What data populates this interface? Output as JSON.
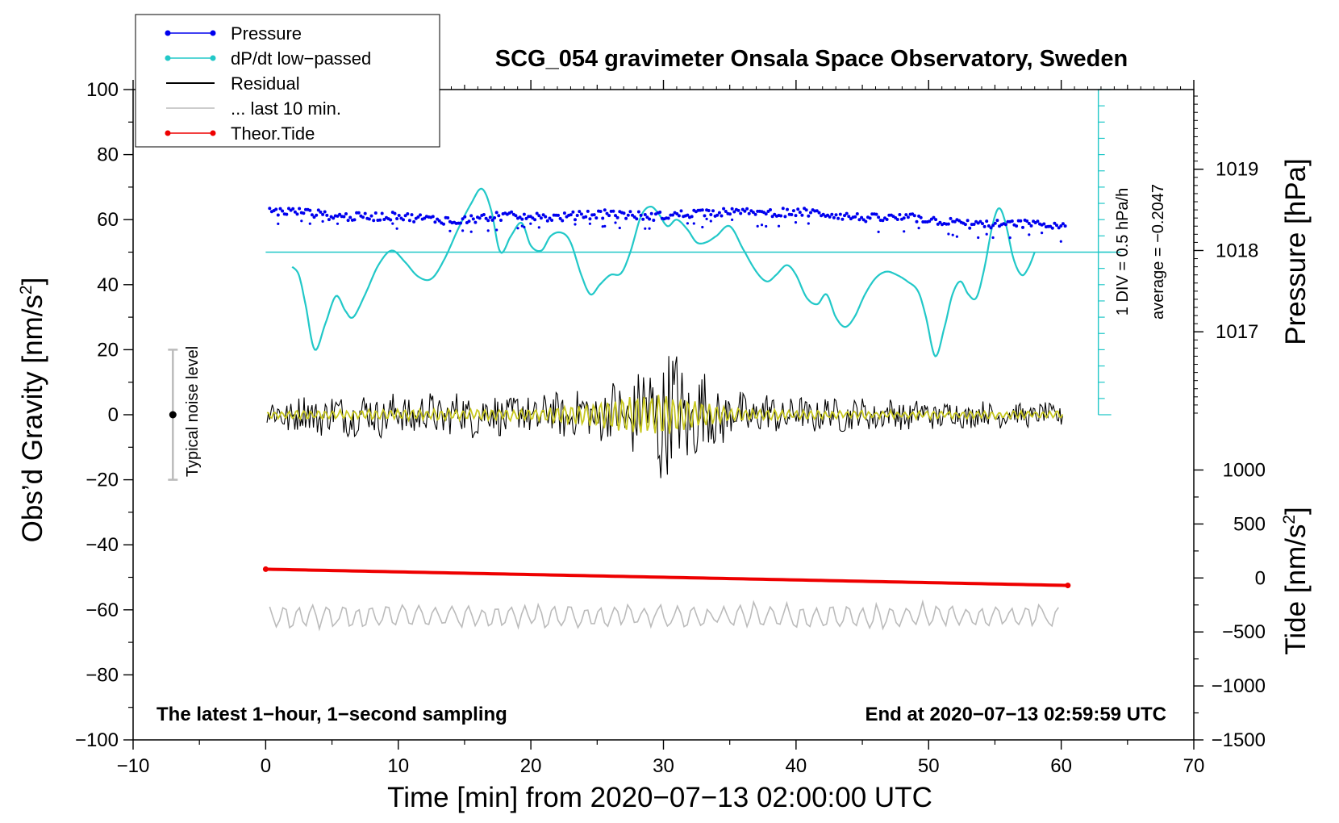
{
  "chart_data": {
    "type": "line",
    "title": "SCG_054 gravimeter Onsala Space Observatory, Sweden",
    "xlabel": "Time [min] from 2020−07−13 02:00:00 UTC",
    "ylabel": "Obs’d Gravity [nm/s",
    "ylabel_sup": "2",
    "ylabel_close": "]",
    "y2label_pressure": "Pressure [hPa]",
    "y2label_tide": "Tide [nm/s",
    "y2label_tide_sup": "2",
    "y2label_tide_close": "]",
    "xlim": [
      -10,
      70
    ],
    "ylim": [
      -100,
      100
    ],
    "x_ticks": [
      "−10",
      "0",
      "10",
      "20",
      "30",
      "40",
      "50",
      "60",
      "70"
    ],
    "x_tick_values": [
      -10,
      0,
      10,
      20,
      30,
      40,
      50,
      60,
      70
    ],
    "y_ticks": [
      "100",
      "80",
      "60",
      "40",
      "20",
      "0",
      "−20",
      "−40",
      "−60",
      "−80",
      "−100"
    ],
    "y_tick_values": [
      100,
      80,
      60,
      40,
      20,
      0,
      -20,
      -40,
      -60,
      -80,
      -100
    ],
    "pressure_ticks": [
      "1019",
      "1018",
      "1017"
    ],
    "pressure_tick_gravity_positions": [
      75.5,
      50.5,
      25.5
    ],
    "tide_ticks": [
      "1000",
      "500",
      "0",
      "−500",
      "−1000",
      "−1500"
    ],
    "tide_tick_values": [
      1000,
      500,
      0,
      -500,
      -1000,
      -1500
    ],
    "tide_axis_gravity_range": [
      -100,
      -17
    ],
    "tide_axis_tide_range": [
      -1500,
      1000
    ],
    "legend": [
      {
        "label": "Pressure",
        "color": "#0000ee",
        "marker": true
      },
      {
        "label": "dP/dt low−passed",
        "color": "#22c8c8",
        "marker": true
      },
      {
        "label": "Residual",
        "color": "#000000",
        "marker": false
      },
      {
        "label": "... last 10 min.",
        "color": "#bbbbbb",
        "marker": false
      },
      {
        "label": "Theor.Tide",
        "color": "#ee0000",
        "marker": true
      }
    ],
    "series": [
      {
        "name": "Pressure",
        "color": "#0000ee",
        "x": [
          0,
          5,
          10,
          15,
          20,
          25,
          30,
          35,
          37.5,
          40,
          45,
          50,
          55,
          60
        ],
        "values": [
          62.5,
          61.5,
          60.5,
          60.2,
          61,
          61.3,
          61.5,
          62,
          62.8,
          62,
          61,
          59.8,
          58.5,
          58
        ]
      },
      {
        "name": "dP/dt low-passed",
        "color": "#22c8c8",
        "x": [
          2,
          2.5,
          3,
          3.7,
          4.5,
          5.3,
          6,
          6.6,
          7.5,
          8.5,
          9.5,
          10.5,
          11.5,
          12.5,
          13.5,
          14.5,
          15.5,
          16.3,
          17,
          17.7,
          18.5,
          19.3,
          20,
          20.8,
          21.5,
          22.3,
          23,
          23.8,
          24.5,
          25.2,
          26,
          26.8,
          27.5,
          28.3,
          29,
          29.6,
          30.3,
          31,
          31.8,
          32.5,
          33.2,
          34,
          35,
          36,
          37,
          37.8,
          38.5,
          39.3,
          40,
          40.8,
          41.6,
          42.3,
          43,
          43.7,
          44.4,
          45.2,
          46,
          46.8,
          47.6,
          48.4,
          49.2,
          49.8,
          50.5,
          51.2,
          51.8,
          52.4,
          53,
          53.6,
          54.2,
          54.8,
          55.3,
          55.8,
          56.4,
          57,
          57.5,
          58
        ],
        "values": [
          45.5,
          43,
          34,
          20,
          28,
          36.5,
          32,
          30,
          37,
          46,
          50.5,
          47,
          42.5,
          41.8,
          48,
          57,
          65,
          69.5,
          63,
          50,
          55,
          59,
          52,
          50.5,
          55,
          56,
          53,
          43,
          37,
          40,
          43,
          43.5,
          50,
          61,
          64,
          62,
          58,
          60,
          57,
          53,
          53,
          55,
          58,
          51,
          44,
          41,
          43,
          46,
          43,
          36,
          34,
          37,
          30,
          27,
          30,
          37,
          42,
          44,
          43,
          41,
          38,
          30,
          18,
          27,
          37,
          41,
          37,
          36,
          45,
          58,
          63.5,
          59,
          48,
          43,
          45,
          50
        ]
      },
      {
        "name": "Residual",
        "color": "#000000",
        "x": [
          0,
          10,
          20,
          25,
          28,
          30,
          32,
          35,
          40,
          50,
          60
        ],
        "values": [
          5,
          6,
          6,
          7,
          12,
          20,
          14,
          7,
          5,
          4,
          3
        ]
      },
      {
        "name": "Residual smoothed",
        "color": "#c8c820",
        "x": [
          0,
          10,
          20,
          25,
          28,
          30,
          32,
          35,
          40,
          50,
          60
        ],
        "values": [
          1,
          1.5,
          1.5,
          3.5,
          5.5,
          6,
          4,
          2,
          1,
          1,
          1
        ]
      },
      {
        "name": "last 10 min.",
        "color": "#bbbbbb",
        "x": [
          0,
          60
        ],
        "values": [
          -62,
          -62
        ]
      },
      {
        "name": "Theor.Tide",
        "color": "#ee0000",
        "x": [
          0,
          60.5
        ],
        "values": [
          -47.5,
          -52.5
        ]
      }
    ],
    "pressure_reference_line": 50,
    "divider_axis": {
      "x_min": 62.8,
      "top": 100,
      "bottom": 0,
      "div_step": 5
    },
    "divider_label": "1 DIV = 0.5 hPa/h",
    "average_label": "average = −0.2047",
    "noise_label": "Typical noise level",
    "noise_bar": {
      "x_min": -7,
      "low": -20,
      "high": 20,
      "center": 0
    },
    "bottom_left_note": "The latest 1−hour, 1−second sampling",
    "bottom_right_note": "End at 2020−07−13 02:59:59 UTC"
  }
}
